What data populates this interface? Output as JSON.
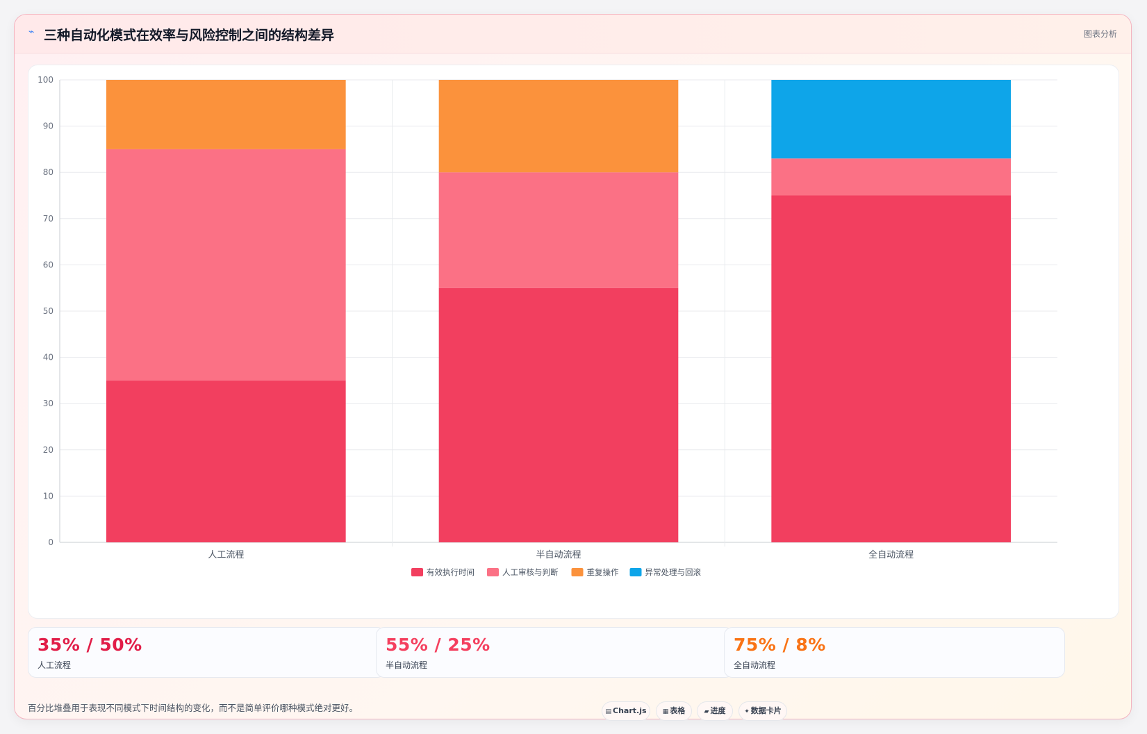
{
  "header": {
    "title": "三种自动化模式在效率与风险控制之间的结构差异",
    "tag": "图表分析"
  },
  "chart_data": {
    "type": "bar",
    "stacked": true,
    "categories": [
      "人工流程",
      "半自动流程",
      "全自动流程"
    ],
    "series": [
      {
        "name": "有效执行时间",
        "color": "#f23f5f",
        "values": [
          35,
          55,
          75
        ]
      },
      {
        "name": "人工审核与判断",
        "color": "#fb7185",
        "values": [
          50,
          25,
          8
        ]
      },
      {
        "name": "重复操作",
        "color": "#fb923c",
        "values": [
          15,
          20,
          0
        ]
      },
      {
        "name": "异常处理与回滚",
        "color": "#0ea5e9",
        "values": [
          0,
          0,
          17
        ]
      }
    ],
    "ylim": [
      0,
      100
    ],
    "yticks": [
      0,
      10,
      20,
      30,
      40,
      50,
      60,
      70,
      80,
      90,
      100
    ],
    "grid": true,
    "legend": "bottom"
  },
  "stats": [
    {
      "value": "35% / 50%",
      "label": "人工流程",
      "color": "#e11d48"
    },
    {
      "value": "55% / 25%",
      "label": "半自动流程",
      "color": "#f43f5e"
    },
    {
      "value": "75% / 8%",
      "label": "全自动流程",
      "color": "#f97316"
    }
  ],
  "note": "百分比堆叠用于表现不同模式下时间结构的变化，而不是简单评价哪种模式绝对更好。",
  "chips": [
    {
      "icon": "▤",
      "label": "Chart.js"
    },
    {
      "icon": "▦",
      "label": "表格"
    },
    {
      "icon": "▰",
      "label": "进度"
    },
    {
      "icon": "✦",
      "label": "数据卡片"
    }
  ]
}
